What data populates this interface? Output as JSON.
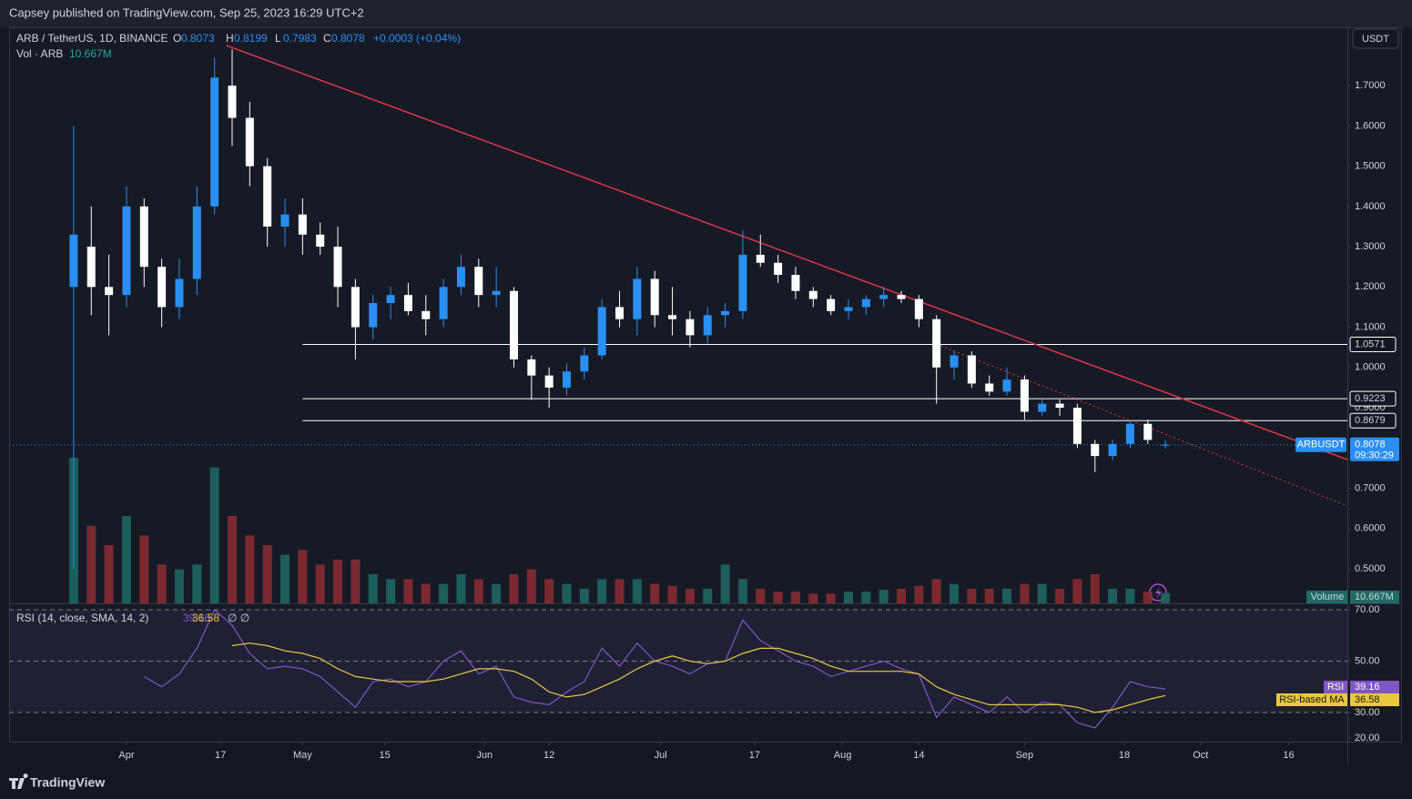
{
  "header": {
    "published": "Capsey published on TradingView.com, Sep 25, 2023 16:29 UTC+2",
    "logo": "TradingView",
    "currency_button": "USDT"
  },
  "chart_data": {
    "type": "candlestick",
    "title": "ARB / TetherUS, 1D, BINANCE",
    "ohlc_labels": [
      "O",
      "H",
      "L",
      "C"
    ],
    "change": "+0.0003 (+0.04%)",
    "symbol": "ARBUSDT",
    "countdown": "09:30:29",
    "x": [
      "2023-03-23",
      "2023-03-26",
      "2023-03-29",
      "2023-04-01",
      "2023-04-04",
      "2023-04-07",
      "2023-04-10",
      "2023-04-13",
      "2023-04-16",
      "2023-04-19",
      "2023-04-22",
      "2023-04-25",
      "2023-04-28",
      "2023-05-01",
      "2023-05-04",
      "2023-05-07",
      "2023-05-10",
      "2023-05-13",
      "2023-05-16",
      "2023-05-19",
      "2023-05-22",
      "2023-05-25",
      "2023-05-28",
      "2023-05-31",
      "2023-06-03",
      "2023-06-06",
      "2023-06-09",
      "2023-06-12",
      "2023-06-15",
      "2023-06-18",
      "2023-06-21",
      "2023-06-24",
      "2023-06-27",
      "2023-06-30",
      "2023-07-03",
      "2023-07-06",
      "2023-07-09",
      "2023-07-12",
      "2023-07-15",
      "2023-07-18",
      "2023-07-21",
      "2023-07-24",
      "2023-07-27",
      "2023-07-30",
      "2023-08-02",
      "2023-08-05",
      "2023-08-08",
      "2023-08-11",
      "2023-08-14",
      "2023-08-17",
      "2023-08-20",
      "2023-08-23",
      "2023-08-26",
      "2023-08-29",
      "2023-09-01",
      "2023-09-04",
      "2023-09-07",
      "2023-09-10",
      "2023-09-13",
      "2023-09-16",
      "2023-09-19",
      "2023-09-22",
      "2023-09-25"
    ],
    "open": [
      1.2,
      1.3,
      1.2,
      1.18,
      1.4,
      1.25,
      1.15,
      1.22,
      1.4,
      1.7,
      1.62,
      1.5,
      1.35,
      1.38,
      1.33,
      1.3,
      1.2,
      1.1,
      1.16,
      1.18,
      1.14,
      1.12,
      1.2,
      1.25,
      1.18,
      1.19,
      1.02,
      0.98,
      0.95,
      0.99,
      1.03,
      1.15,
      1.12,
      1.22,
      1.13,
      1.12,
      1.08,
      1.13,
      1.14,
      1.28,
      1.26,
      1.23,
      1.19,
      1.17,
      1.14,
      1.15,
      1.17,
      1.18,
      1.17,
      1.12,
      1.0,
      1.03,
      0.96,
      0.94,
      0.97,
      0.89,
      0.91,
      0.9,
      0.81,
      0.78,
      0.81,
      0.86,
      0.8073
    ],
    "high": [
      1.6,
      1.4,
      1.28,
      1.45,
      1.42,
      1.27,
      1.27,
      1.45,
      1.77,
      1.79,
      1.66,
      1.52,
      1.42,
      1.42,
      1.36,
      1.35,
      1.22,
      1.18,
      1.2,
      1.21,
      1.18,
      1.22,
      1.28,
      1.27,
      1.25,
      1.2,
      1.03,
      1.0,
      1.01,
      1.05,
      1.17,
      1.19,
      1.25,
      1.24,
      1.2,
      1.14,
      1.15,
      1.16,
      1.34,
      1.33,
      1.28,
      1.25,
      1.2,
      1.18,
      1.17,
      1.18,
      1.2,
      1.19,
      1.18,
      1.13,
      1.04,
      1.04,
      0.98,
      1.0,
      0.98,
      0.92,
      0.92,
      0.91,
      0.82,
      0.82,
      0.87,
      0.87,
      0.8199
    ],
    "low": [
      0.5,
      1.13,
      1.08,
      1.15,
      1.2,
      1.1,
      1.12,
      1.18,
      1.38,
      1.55,
      1.45,
      1.3,
      1.3,
      1.28,
      1.28,
      1.15,
      1.02,
      1.07,
      1.12,
      1.13,
      1.08,
      1.1,
      1.18,
      1.15,
      1.15,
      1.0,
      0.92,
      0.9,
      0.93,
      0.97,
      1.02,
      1.1,
      1.08,
      1.1,
      1.08,
      1.05,
      1.06,
      1.1,
      1.12,
      1.25,
      1.21,
      1.17,
      1.15,
      1.13,
      1.12,
      1.13,
      1.15,
      1.16,
      1.1,
      0.91,
      0.97,
      0.95,
      0.93,
      0.93,
      0.87,
      0.88,
      0.88,
      0.8,
      0.74,
      0.77,
      0.8,
      0.81,
      0.7983
    ],
    "close": [
      1.33,
      1.2,
      1.18,
      1.4,
      1.25,
      1.15,
      1.22,
      1.4,
      1.72,
      1.62,
      1.5,
      1.35,
      1.38,
      1.33,
      1.3,
      1.2,
      1.1,
      1.16,
      1.18,
      1.14,
      1.12,
      1.2,
      1.25,
      1.18,
      1.19,
      1.02,
      0.98,
      0.95,
      0.99,
      1.03,
      1.15,
      1.12,
      1.22,
      1.13,
      1.12,
      1.08,
      1.13,
      1.14,
      1.28,
      1.26,
      1.23,
      1.19,
      1.17,
      1.14,
      1.15,
      1.17,
      1.18,
      1.17,
      1.12,
      1.0,
      1.03,
      0.96,
      0.94,
      0.97,
      0.89,
      0.91,
      0.9,
      0.81,
      0.78,
      0.81,
      0.86,
      0.82,
      0.8078
    ],
    "up_color": "#2a8ff3",
    "down_color": "#ffffff",
    "ylim": [
      0.414,
      1.845
    ],
    "yticks": [
      {
        "value": 0.5,
        "label": "0.5000"
      },
      {
        "value": 0.6,
        "label": "0.6000"
      },
      {
        "value": 0.7,
        "label": "0.7000"
      },
      {
        "value": 0.9,
        "label": "0.9000"
      },
      {
        "value": 1.0,
        "label": "1.0000"
      },
      {
        "value": 1.1,
        "label": "1.1000"
      },
      {
        "value": 1.2,
        "label": "1.2000"
      },
      {
        "value": 1.3,
        "label": "1.3000"
      },
      {
        "value": 1.4,
        "label": "1.4000"
      },
      {
        "value": 1.5,
        "label": "1.5000"
      },
      {
        "value": 1.6,
        "label": "1.6000"
      },
      {
        "value": 1.7,
        "label": "1.7000"
      }
    ],
    "xlim": [
      "2023-03-12",
      "2023-10-26"
    ],
    "xticks": [
      {
        "value": "2023-04-01",
        "label": "Apr"
      },
      {
        "value": "2023-04-17",
        "label": "17"
      },
      {
        "value": "2023-05-01",
        "label": "May"
      },
      {
        "value": "2023-05-15",
        "label": "15"
      },
      {
        "value": "2023-06-01",
        "label": "Jun"
      },
      {
        "value": "2023-06-12",
        "label": "12"
      },
      {
        "value": "2023-07-01",
        "label": "Jul"
      },
      {
        "value": "2023-07-17",
        "label": "17"
      },
      {
        "value": "2023-08-01",
        "label": "Aug"
      },
      {
        "value": "2023-08-14",
        "label": "14"
      },
      {
        "value": "2023-09-01",
        "label": "Sep"
      },
      {
        "value": "2023-09-18",
        "label": "18"
      },
      {
        "value": "2023-10-01",
        "label": "Oct"
      },
      {
        "value": "2023-10-16",
        "label": "16"
      }
    ],
    "levels": [
      {
        "value": 1.0571,
        "from": "2023-05-01"
      },
      {
        "value": 0.9223,
        "from": "2023-05-01"
      },
      {
        "value": 0.8679,
        "from": "2023-05-01"
      }
    ],
    "level_color": "#ffffff",
    "trendlines": [
      {
        "points": [
          [
            "2023-04-18",
            1.8
          ],
          [
            "2023-10-26",
            0.771
          ]
        ],
        "color": "#e0344b",
        "dashed": false
      },
      {
        "points": [
          [
            "2023-08-17",
            1.058
          ],
          [
            "2023-10-26",
            0.656
          ]
        ],
        "color": "#e0344b",
        "dashed": true
      }
    ],
    "volume": {
      "title": "Vol · ARB",
      "name": "Volume",
      "last_label": "10.667M",
      "up_color": "#1f6b64",
      "down_color": "#8c2d33",
      "values": [
        150,
        80,
        60,
        90,
        70,
        40,
        35,
        40,
        140,
        90,
        70,
        60,
        50,
        55,
        40,
        45,
        45,
        30,
        25,
        25,
        20,
        20,
        30,
        25,
        20,
        30,
        35,
        25,
        20,
        15,
        25,
        25,
        25,
        20,
        18,
        15,
        15,
        40,
        25,
        15,
        12,
        12,
        10,
        10,
        12,
        12,
        14,
        15,
        18,
        25,
        20,
        15,
        15,
        15,
        20,
        20,
        15,
        25,
        30,
        15,
        15,
        12,
        10.667
      ]
    },
    "rsi": {
      "title": "RSI (14, close, SMA, 14, 2)",
      "name": "RSI",
      "color": "#7e57c2",
      "flags": "∅ ∅",
      "values": [
        null,
        null,
        null,
        null,
        44,
        40,
        45,
        55,
        70,
        64,
        53,
        47,
        48,
        47,
        44,
        38,
        32,
        42,
        43,
        40,
        42,
        50,
        54,
        45,
        48,
        36,
        34,
        33,
        38,
        42,
        55,
        48,
        57,
        50,
        48,
        45,
        49,
        50,
        66,
        58,
        54,
        50,
        48,
        44,
        46,
        48,
        50,
        47,
        45,
        28,
        36,
        33,
        30,
        36,
        30,
        34,
        33,
        26,
        24,
        32,
        42,
        40,
        39.16
      ],
      "ma": {
        "name": "RSI-based MA",
        "color": "#e8c93a",
        "values": [
          null,
          null,
          null,
          null,
          null,
          null,
          null,
          null,
          null,
          56,
          57,
          56,
          54,
          53,
          51,
          47,
          44,
          43,
          42,
          42,
          42,
          43,
          45,
          47,
          47,
          46,
          43,
          38,
          36,
          37,
          40,
          43,
          47,
          50,
          52,
          50,
          49,
          50,
          53,
          55,
          55,
          53,
          51,
          48,
          46,
          46,
          46,
          46,
          45,
          40,
          37,
          35,
          33,
          33,
          33,
          33,
          33,
          32,
          30,
          31,
          33,
          35,
          36.58
        ]
      },
      "ylim": [
        18.6,
        72.5
      ],
      "yticks": [
        {
          "value": 70,
          "label": "70.00"
        },
        {
          "value": 50,
          "label": "50.00"
        },
        {
          "value": 30,
          "label": "30.00"
        },
        {
          "value": 20,
          "label": "20.00"
        }
      ],
      "levels": [
        70,
        50,
        30
      ],
      "band": [
        30,
        70
      ]
    }
  }
}
